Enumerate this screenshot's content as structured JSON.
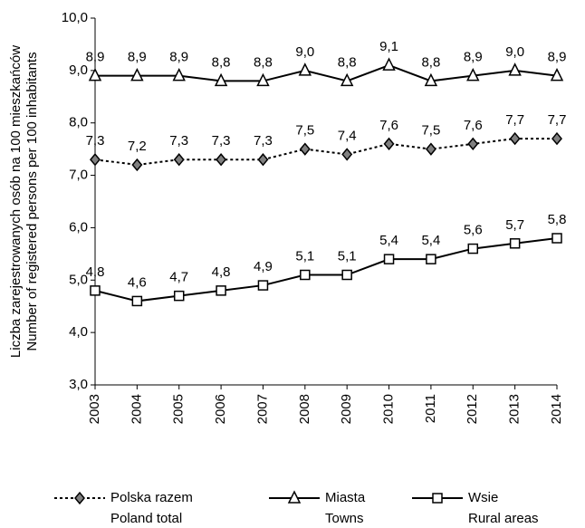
{
  "chart_data": {
    "type": "line",
    "ylabel": [
      "Liczba zarejestrowanych osób na 100 mieszkańców",
      "Number of registered persons per 100 inhabitants"
    ],
    "categories": [
      "2003",
      "2004",
      "2005",
      "2006",
      "2007",
      "2008",
      "2009",
      "2010",
      "2011",
      "2012",
      "2013",
      "2014"
    ],
    "series": [
      {
        "name": "Polska razem",
        "name_en": "Poland total",
        "color": "#000000",
        "dash": "dotted",
        "marker": "diamond",
        "marker_fill": "#808080",
        "values": [
          7.3,
          7.2,
          7.3,
          7.3,
          7.3,
          7.5,
          7.4,
          7.6,
          7.5,
          7.6,
          7.7,
          7.7
        ],
        "value_labels": [
          "7,3",
          "7,2",
          "7,3",
          "7,3",
          "7,3",
          "7,5",
          "7,4",
          "7,6",
          "7,5",
          "7,6",
          "7,7",
          "7,7"
        ]
      },
      {
        "name": "Miasta",
        "name_en": "Towns",
        "color": "#000000",
        "dash": "solid",
        "marker": "triangle",
        "marker_fill": "#ffffff",
        "values": [
          8.9,
          8.9,
          8.9,
          8.8,
          8.8,
          9.0,
          8.8,
          9.1,
          8.8,
          8.9,
          9.0,
          8.9
        ],
        "value_labels": [
          "8,9",
          "8,9",
          "8,9",
          "8,8",
          "8,8",
          "9,0",
          "8,8",
          "9,1",
          "8,8",
          "8,9",
          "9,0",
          "8,9"
        ]
      },
      {
        "name": "Wsie",
        "name_en": "Rural areas",
        "color": "#000000",
        "dash": "solid",
        "marker": "square",
        "marker_fill": "#ffffff",
        "values": [
          4.8,
          4.6,
          4.7,
          4.8,
          4.9,
          5.1,
          5.1,
          5.4,
          5.4,
          5.6,
          5.7,
          5.8
        ],
        "value_labels": [
          "4,8",
          "4,6",
          "4,7",
          "4,8",
          "4,9",
          "5,1",
          "5,1",
          "5,4",
          "5,4",
          "5,6",
          "5,7",
          "5,8"
        ]
      }
    ],
    "ylim": [
      3,
      10
    ],
    "yticks": [
      {
        "value": 3,
        "label": "3,0"
      },
      {
        "value": 4,
        "label": "4,0"
      },
      {
        "value": 5,
        "label": "5,0"
      },
      {
        "value": 6,
        "label": "6,0"
      },
      {
        "value": 7,
        "label": "7,0"
      },
      {
        "value": 8,
        "label": "8,0"
      },
      {
        "value": 9,
        "label": "9,0"
      },
      {
        "value": 10,
        "label": "10,0"
      }
    ],
    "grid": false,
    "legend": "bottom"
  }
}
